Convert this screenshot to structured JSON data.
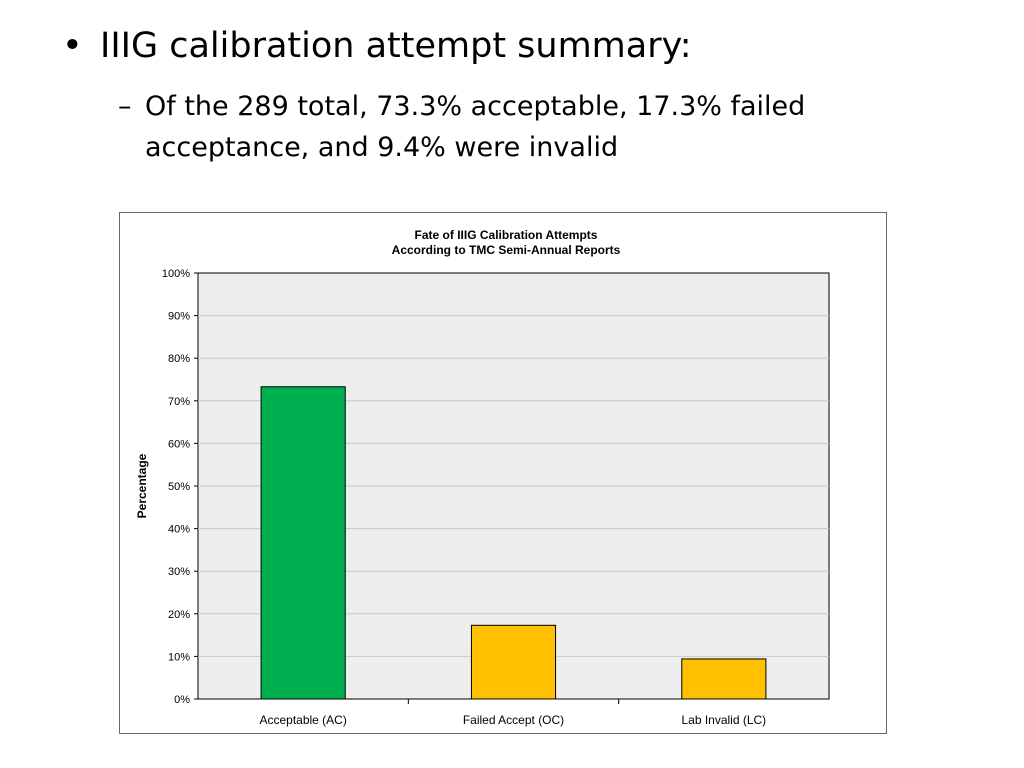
{
  "slide": {
    "bullet_symbol": "•",
    "bullet_text": "IIIG calibration attempt summary:",
    "sub_symbol": "–",
    "sub_text": "Of the 289 total, 73.3% acceptable, 17.3% failed acceptance, and 9.4% were invalid"
  },
  "chart_data": {
    "type": "bar",
    "title": "Fate of IIIG Calibration Attempts",
    "subtitle": "According to TMC Semi-Annual Reports",
    "xlabel": "",
    "ylabel": "Percentage",
    "categories": [
      "Acceptable (AC)",
      "Failed Accept (OC)",
      "Lab Invalid (LC)"
    ],
    "values": [
      73.3,
      17.3,
      9.4
    ],
    "bar_colors": [
      "#00b050",
      "#ffc000",
      "#ffc000"
    ],
    "ylim": [
      0,
      100
    ],
    "yticks": [
      0,
      10,
      20,
      30,
      40,
      50,
      60,
      70,
      80,
      90,
      100
    ],
    "ytick_labels": [
      "0%",
      "10%",
      "20%",
      "30%",
      "40%",
      "50%",
      "60%",
      "70%",
      "80%",
      "90%",
      "100%"
    ],
    "grid": true,
    "plot_background": "#eeeeee",
    "legend": "none"
  }
}
